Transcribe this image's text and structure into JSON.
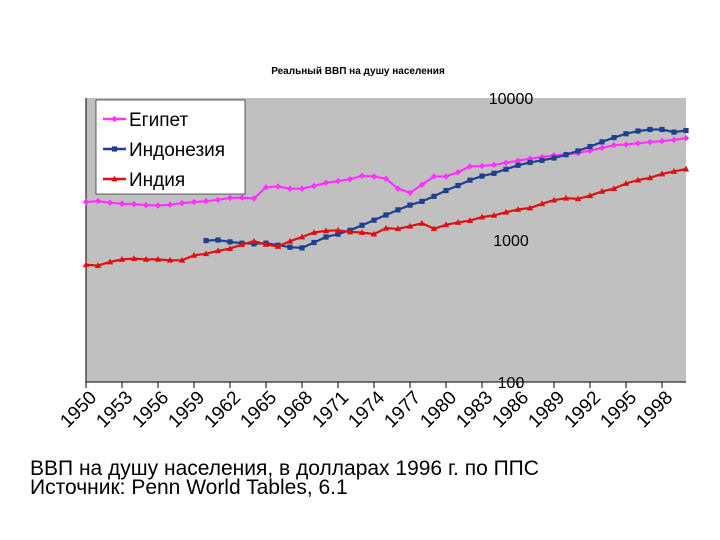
{
  "chart_data": {
    "type": "line",
    "title": "Реальный ВВП на душу населения",
    "y_scale": "log",
    "ylim": [
      100,
      10000
    ],
    "yticks": [
      "10000",
      "1000",
      "100"
    ],
    "xlim": [
      1950,
      2000
    ],
    "xticks": [
      "1950",
      "1953",
      "1956",
      "1959",
      "1962",
      "1965",
      "1968",
      "1971",
      "1974",
      "1977",
      "1980",
      "1983",
      "1986",
      "1989",
      "1992",
      "1995",
      "1998"
    ],
    "grid": false,
    "legend_position": "top-left",
    "series": [
      {
        "name": "Египет",
        "color": "#ff33ff",
        "marker": "diamond",
        "x": [
          1950,
          1951,
          1952,
          1953,
          1954,
          1955,
          1956,
          1957,
          1958,
          1959,
          1960,
          1961,
          1962,
          1963,
          1964,
          1965,
          1966,
          1967,
          1968,
          1969,
          1970,
          1971,
          1972,
          1973,
          1974,
          1975,
          1976,
          1977,
          1978,
          1979,
          1980,
          1981,
          1982,
          1983,
          1984,
          1985,
          1986,
          1987,
          1988,
          1989,
          1990,
          1991,
          1992,
          1993,
          1994,
          1995,
          1996,
          1997,
          1998,
          1999,
          2000
        ],
        "values": [
          1850,
          1880,
          1830,
          1800,
          1790,
          1760,
          1750,
          1770,
          1820,
          1850,
          1880,
          1920,
          1980,
          1990,
          1960,
          2350,
          2380,
          2300,
          2300,
          2400,
          2530,
          2600,
          2680,
          2830,
          2800,
          2700,
          2300,
          2150,
          2450,
          2800,
          2800,
          3000,
          3300,
          3320,
          3380,
          3500,
          3620,
          3740,
          3840,
          3950,
          4000,
          4090,
          4260,
          4450,
          4650,
          4700,
          4800,
          4900,
          4970,
          5080,
          5220
        ]
      },
      {
        "name": "Индонезия",
        "color": "#1f3f8f",
        "marker": "square",
        "x": [
          1960,
          1961,
          1962,
          1963,
          1964,
          1965,
          1966,
          1967,
          1968,
          1969,
          1970,
          1971,
          1972,
          1973,
          1974,
          1975,
          1976,
          1977,
          1978,
          1979,
          1980,
          1981,
          1982,
          1983,
          1984,
          1985,
          1986,
          1987,
          1988,
          1989,
          1990,
          1991,
          1992,
          1993,
          1994,
          1995,
          1996,
          1997,
          1998,
          1999,
          2000
        ],
        "values": [
          990,
          1000,
          970,
          950,
          940,
          950,
          920,
          890,
          880,
          960,
          1050,
          1100,
          1170,
          1270,
          1380,
          1500,
          1630,
          1760,
          1870,
          2030,
          2230,
          2420,
          2640,
          2820,
          2950,
          3150,
          3360,
          3520,
          3640,
          3780,
          3990,
          4240,
          4550,
          4910,
          5260,
          5600,
          5850,
          6000,
          6000,
          5750,
          5900
        ]
      },
      {
        "name": "Индия",
        "color": "#dd1111",
        "marker": "triangle",
        "x": [
          1950,
          1951,
          1952,
          1953,
          1954,
          1955,
          1956,
          1957,
          1958,
          1959,
          1960,
          1961,
          1962,
          1963,
          1964,
          1965,
          1966,
          1967,
          1968,
          1969,
          1970,
          1971,
          1972,
          1973,
          1974,
          1975,
          1976,
          1977,
          1978,
          1979,
          1980,
          1981,
          1982,
          1983,
          1984,
          1985,
          1986,
          1987,
          1988,
          1989,
          1990,
          1991,
          1992,
          1993,
          1994,
          1995,
          1996,
          1997,
          1998,
          1999,
          2000
        ],
        "values": [
          670,
          660,
          700,
          730,
          740,
          730,
          730,
          720,
          720,
          780,
          800,
          840,
          870,
          930,
          980,
          930,
          900,
          980,
          1050,
          1130,
          1160,
          1170,
          1140,
          1130,
          1100,
          1210,
          1200,
          1250,
          1310,
          1200,
          1280,
          1330,
          1370,
          1450,
          1490,
          1570,
          1640,
          1680,
          1800,
          1910,
          1970,
          1950,
          2050,
          2200,
          2300,
          2500,
          2640,
          2740,
          2920,
          3040,
          3160
        ]
      }
    ]
  },
  "caption": {
    "line1": "ВВП на душу населения, в долларах 1996 г. по ППС",
    "line2": "Источник: Penn World Tables, 6.1"
  }
}
